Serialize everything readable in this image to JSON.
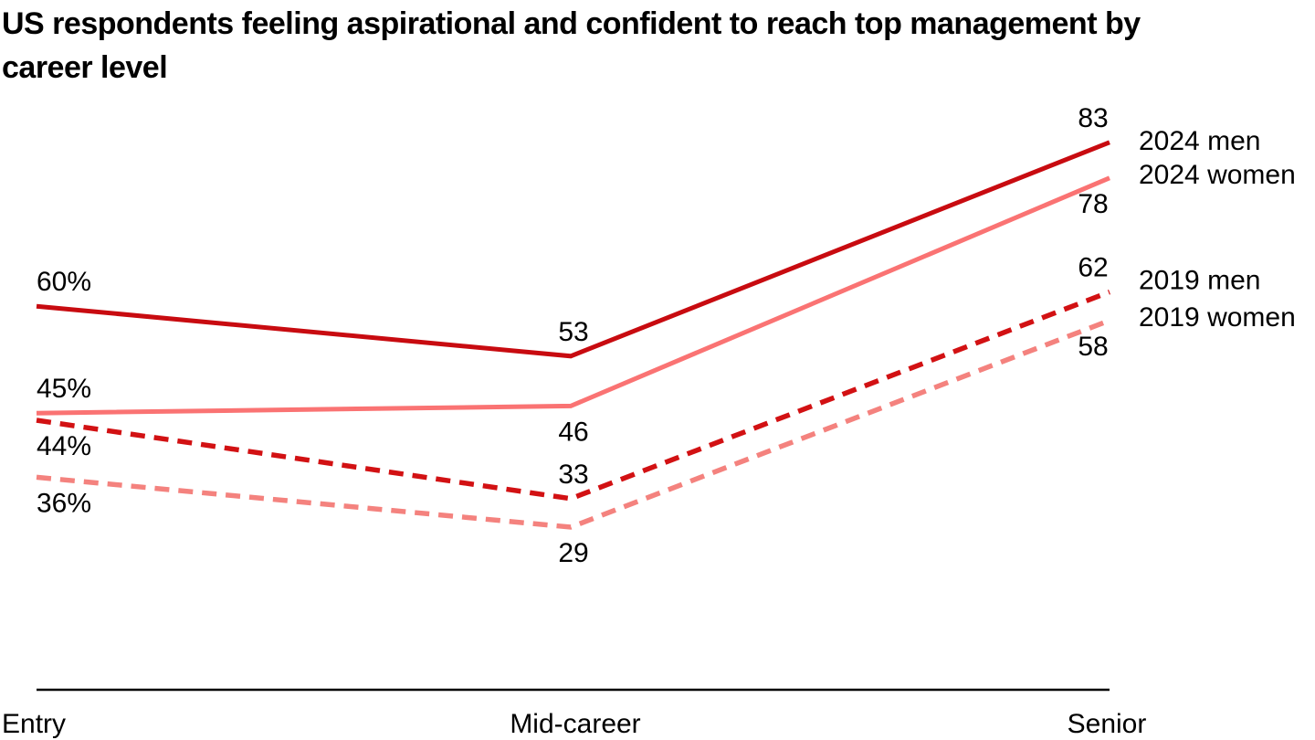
{
  "title": "US respondents feeling aspirational and confident to reach top management by career level",
  "chart_data": {
    "type": "line",
    "categories": [
      "Entry",
      "Mid-career",
      "Senior"
    ],
    "series": [
      {
        "name": "2024 men",
        "values": [
          60,
          53,
          83
        ],
        "point_labels": [
          "60%",
          "53",
          "83"
        ],
        "label_side": [
          "above",
          "above",
          "above"
        ],
        "line_style": "solid",
        "color": "#C80B10"
      },
      {
        "name": "2024 women",
        "values": [
          45,
          46,
          78
        ],
        "point_labels": [
          "45%",
          "46",
          "78"
        ],
        "label_side": [
          "above",
          "below",
          "below"
        ],
        "line_style": "solid",
        "color": "#FA7373"
      },
      {
        "name": "2019 men",
        "values": [
          44,
          33,
          62
        ],
        "point_labels": [
          "44%",
          "33",
          "62"
        ],
        "label_side": [
          "below",
          "above",
          "above"
        ],
        "line_style": "dashed",
        "color": "#D21113"
      },
      {
        "name": "2019 women",
        "values": [
          36,
          29,
          58
        ],
        "point_labels": [
          "36%",
          "29",
          "58"
        ],
        "label_side": [
          "below",
          "below",
          "below"
        ],
        "line_style": "dashed",
        "color": "#F4827E"
      }
    ],
    "xlabel": "",
    "ylabel": "",
    "unit": "%",
    "ylim": [
      0,
      100
    ],
    "grid": false,
    "legend_position": "right-of-line-ends",
    "text_color": "#000000",
    "axis_color": "#000000"
  }
}
